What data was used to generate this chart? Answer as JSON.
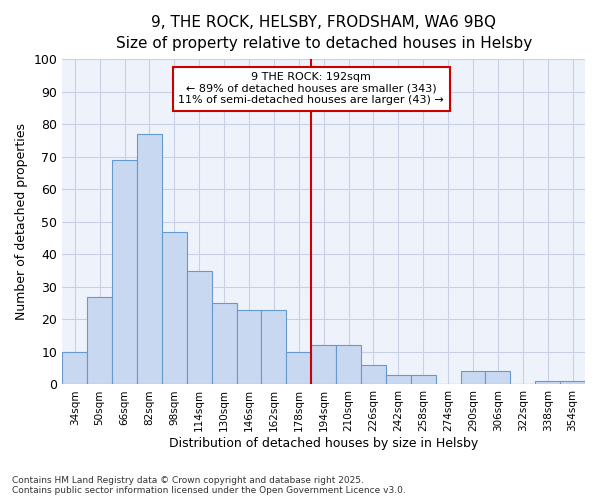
{
  "title_line1": "9, THE ROCK, HELSBY, FRODSHAM, WA6 9BQ",
  "title_line2": "Size of property relative to detached houses in Helsby",
  "xlabel": "Distribution of detached houses by size in Helsby",
  "ylabel": "Number of detached properties",
  "categories": [
    "34sqm",
    "50sqm",
    "66sqm",
    "82sqm",
    "98sqm",
    "114sqm",
    "130sqm",
    "146sqm",
    "162sqm",
    "178sqm",
    "194sqm",
    "210sqm",
    "226sqm",
    "242sqm",
    "258sqm",
    "274sqm",
    "290sqm",
    "306sqm",
    "322sqm",
    "338sqm",
    "354sqm"
  ],
  "values": [
    10,
    27,
    69,
    77,
    47,
    35,
    25,
    23,
    23,
    10,
    12,
    12,
    6,
    3,
    3,
    0,
    4,
    4,
    0,
    1,
    1
  ],
  "bar_color": "#c8d8f0",
  "bar_edge_color": "#6699cc",
  "vline_x_index": 10,
  "annotation_text_line1": "9 THE ROCK: 192sqm",
  "annotation_text_line2": "← 89% of detached houses are smaller (343)",
  "annotation_text_line3": "11% of semi-detached houses are larger (43) →",
  "annotation_box_color": "white",
  "annotation_box_edge_color": "#cc0000",
  "vline_color": "#cc0000",
  "ylim": [
    0,
    100
  ],
  "yticks": [
    0,
    10,
    20,
    30,
    40,
    50,
    60,
    70,
    80,
    90,
    100
  ],
  "plot_bg_color": "#eef2fa",
  "fig_bg_color": "#ffffff",
  "grid_color": "#c8d0e8",
  "title_fontsize": 11,
  "subtitle_fontsize": 10,
  "footer_line1": "Contains HM Land Registry data © Crown copyright and database right 2025.",
  "footer_line2": "Contains public sector information licensed under the Open Government Licence v3.0."
}
